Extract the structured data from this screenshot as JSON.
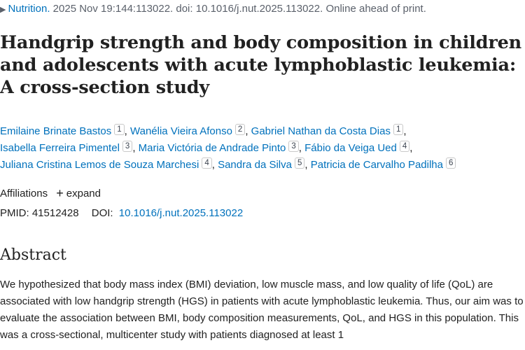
{
  "citation": {
    "journal": "Nutrition.",
    "details": "2025 Nov 19:144:113022. doi: 10.1016/j.nut.2025.113022. Online ahead of print."
  },
  "title": "Handgrip strength and body composition in children and adolescents with acute lymphoblastic leukemia: A cross-section study",
  "authors": [
    {
      "name": "Emilaine Brinate Bastos",
      "aff": "1"
    },
    {
      "name": "Wanélia Vieira Afonso",
      "aff": "2"
    },
    {
      "name": "Gabriel Nathan da Costa Dias",
      "aff": "1"
    },
    {
      "name": "Isabella Ferreira Pimentel",
      "aff": "3"
    },
    {
      "name": "Maria Victória de Andrade Pinto",
      "aff": "3"
    },
    {
      "name": "Fábio da Veiga Ued",
      "aff": "4"
    },
    {
      "name": "Juliana Cristina Lemos de Souza Marchesi",
      "aff": "4"
    },
    {
      "name": "Sandra da Silva",
      "aff": "5"
    },
    {
      "name": "Patricia de Carvalho Padilha",
      "aff": "6"
    }
  ],
  "affiliations": {
    "label": "Affiliations",
    "expand_label": "expand"
  },
  "ids": {
    "pmid_label": "PMID:",
    "pmid": "41512428",
    "doi_label": "DOI:",
    "doi": "10.1016/j.nut.2025.113022"
  },
  "abstract": {
    "heading": "Abstract",
    "text": "We hypothesized that body mass index (BMI) deviation, low muscle mass, and low quality of life (QoL) are associated with low handgrip strength (HGS) in patients with acute lymphoblastic leukemia. Thus, our aim was to evaluate the association between BMI, body composition measurements, QoL, and HGS in this population. This was a cross-sectional, multicenter study with patients diagnosed at least 1"
  },
  "colors": {
    "link": "#0071bc",
    "text": "#212121",
    "muted": "#5b616b"
  }
}
